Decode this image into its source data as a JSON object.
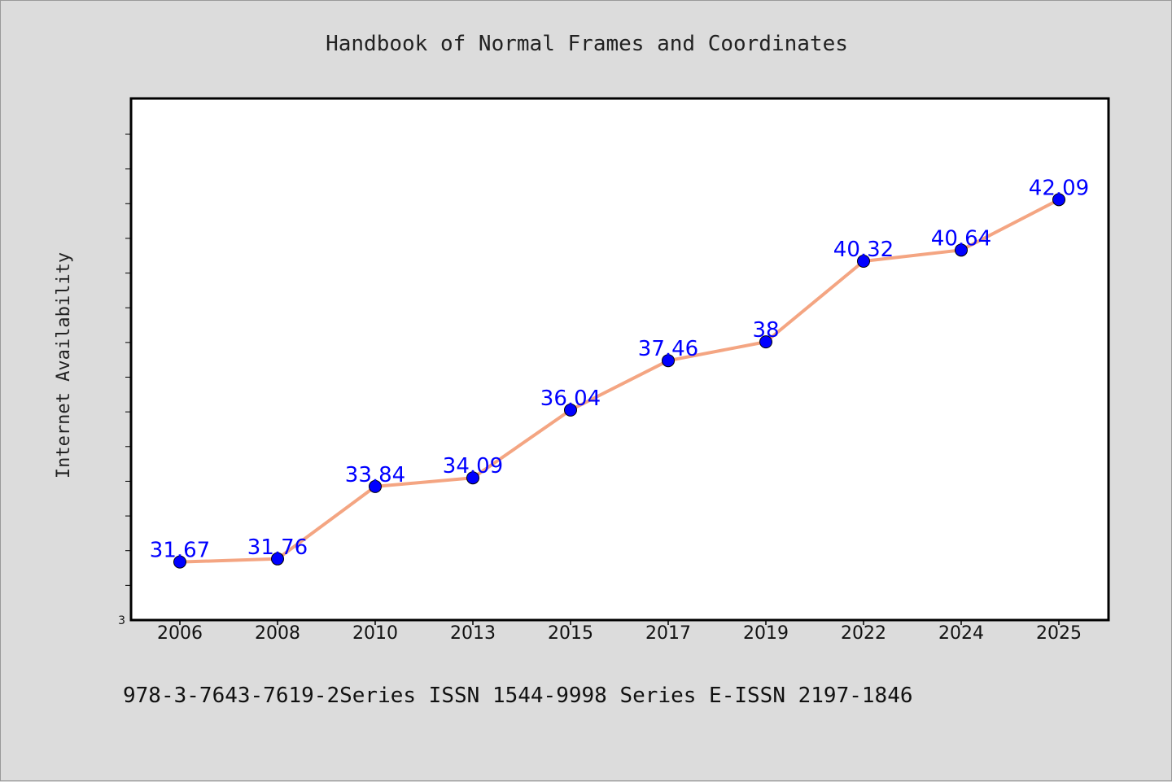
{
  "title": "Handbook of Normal Frames and Coordinates",
  "footer": "978-3-7643-7619-2Series ISSN 1544-9998 Series E-ISSN 2197-1846",
  "chart_data": {
    "type": "line",
    "title": "Handbook of Normal Frames and Coordinates",
    "xlabel": "",
    "ylabel": "Internet Availability",
    "categories": [
      "2006",
      "2008",
      "2010",
      "2013",
      "2015",
      "2017",
      "2019",
      "2022",
      "2024",
      "2025"
    ],
    "values": [
      31.67,
      31.76,
      33.84,
      34.09,
      36.04,
      37.46,
      38,
      40.32,
      40.64,
      42.09
    ],
    "data_labels": [
      "31.67",
      "31.76",
      "33.84",
      "34.09",
      "36.04",
      "37.46",
      "38",
      "40.32",
      "40.64",
      "42.09"
    ],
    "ylim": [
      30.0,
      45.0
    ],
    "y_tick_label": "3",
    "y_minor_ticks": 14,
    "grid": false,
    "line_color": "#f4a582",
    "marker_color": "#0000ff",
    "plot_background": "#ffffff",
    "page_background": "#dcdcdc"
  }
}
